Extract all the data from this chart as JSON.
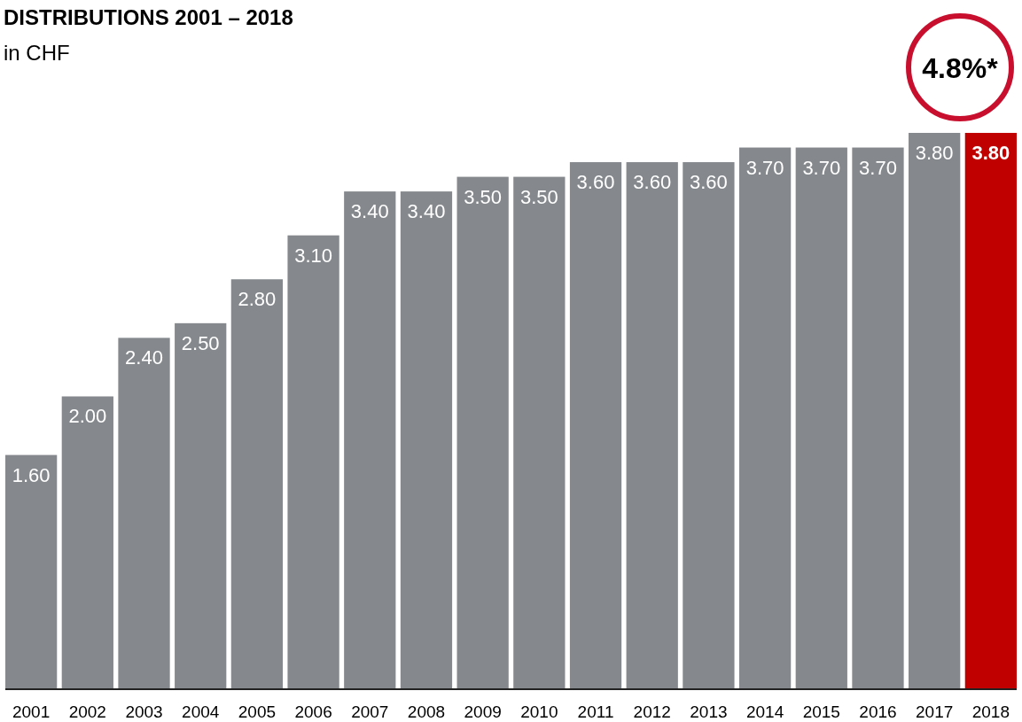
{
  "chart_data": {
    "type": "bar",
    "title": "DISTRIBUTIONS 2001 – 2018",
    "subtitle": "in CHF",
    "categories": [
      "2001",
      "2002",
      "2003",
      "2004",
      "2005",
      "2006",
      "2007",
      "2008",
      "2009",
      "2010",
      "2011",
      "2012",
      "2013",
      "2014",
      "2015",
      "2016",
      "2017",
      "2018"
    ],
    "values": [
      1.6,
      2.0,
      2.4,
      2.5,
      2.8,
      3.1,
      3.4,
      3.4,
      3.5,
      3.5,
      3.6,
      3.6,
      3.6,
      3.7,
      3.7,
      3.7,
      3.8,
      3.8
    ],
    "value_labels": [
      "1.60",
      "2.00",
      "2.40",
      "2.50",
      "2.80",
      "3.10",
      "3.40",
      "3.40",
      "3.50",
      "3.50",
      "3.60",
      "3.60",
      "3.60",
      "3.70",
      "3.70",
      "3.70",
      "3.80",
      "3.80"
    ],
    "colors": [
      "#85898d",
      "#85898d",
      "#85898d",
      "#85898d",
      "#85898d",
      "#85898d",
      "#85898d",
      "#85898d",
      "#85898d",
      "#85898d",
      "#85898d",
      "#85898d",
      "#85898d",
      "#85898d",
      "#85898d",
      "#85898d",
      "#85898d",
      "#c00000"
    ],
    "annotations": [
      "4.8%*"
    ],
    "tick_labels": "x"
  }
}
